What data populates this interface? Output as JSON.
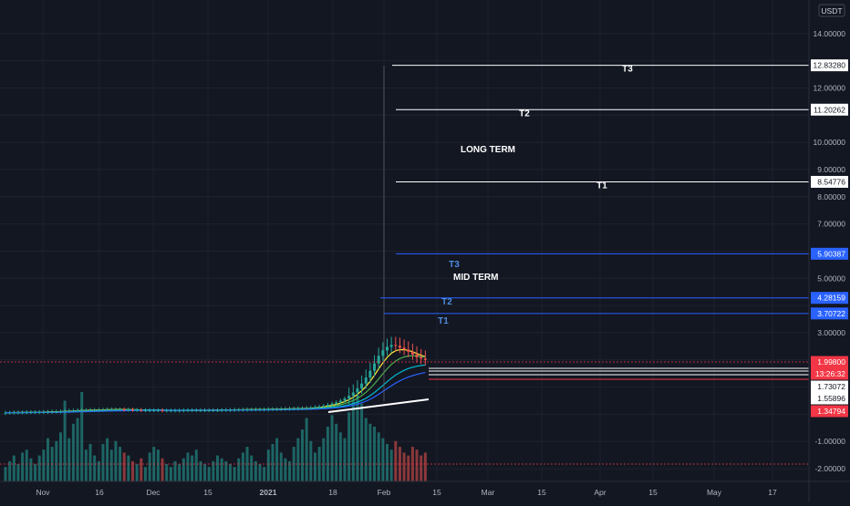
{
  "colors": {
    "background": "#131722",
    "grid": "#1e222d",
    "axis_text": "#b2b5be",
    "up": "#26a69a",
    "down": "#ef5350",
    "long_term_line": "#ffffff",
    "mid_term_line": "#2962ff",
    "mid_term_label": "#4d8ce0",
    "price_badge": "#f23645",
    "blue_badge": "#2962ff",
    "ema_fast": "#ffeb3b",
    "ema_mid": "#4caf50",
    "ema_slow": "#00bcd4",
    "ema_slowest": "#2962ff",
    "trend_line": "#ffffff"
  },
  "chart_data": {
    "type": "candlestick",
    "currency": "USDT",
    "y_axis_ticks": [
      "14.00000",
      "13.00000",
      "12.00000",
      "11.00000",
      "10.00000",
      "9.00000",
      "8.00000",
      "7.00000",
      "6.00000",
      "5.00000",
      "4.00000",
      "3.00000",
      "2.00000",
      "1.00000",
      "0.00000",
      "-1.00000",
      "-2.00000"
    ],
    "y_axis_labels": [
      "14.00000",
      "12.00000",
      "10.00000",
      "9.00000",
      "8.00000",
      "7.00000",
      "5.00000",
      "3.00000",
      "0.00000",
      "-1.00000",
      "-2.00000"
    ],
    "ylim": [
      -2.4,
      15
    ],
    "x_axis_labels": [
      "Nov",
      "16",
      "Dec",
      "15",
      "2021",
      "18",
      "Feb",
      "15",
      "Mar",
      "15",
      "Apr",
      "15",
      "May",
      "17"
    ],
    "date_range": [
      "2020-10-22",
      "2021-02-13"
    ],
    "targets": {
      "long_term": {
        "label": "LONG TERM",
        "levels": [
          {
            "name": "T3",
            "price": "12.83280",
            "value": 12.8328
          },
          {
            "name": "T2",
            "price": "11.20262",
            "value": 11.20262
          },
          {
            "name": "T1",
            "price": "8.54776",
            "value": 8.54776
          }
        ]
      },
      "mid_term": {
        "label": "MID TERM",
        "levels": [
          {
            "name": "T3",
            "price": "5.90387",
            "value": 5.90387
          },
          {
            "name": "T2",
            "price": "4.28159",
            "value": 4.28159
          },
          {
            "name": "T1",
            "price": "3.70722",
            "value": 3.70722
          }
        ]
      }
    },
    "price_badges": {
      "last_price": "1.99800",
      "countdown": "13:26:32",
      "level_a": "1.73072",
      "level_b": "1.55896",
      "level_c": "1.34794"
    },
    "price_levels": {
      "last_price": 1.998,
      "level_a": 1.73072,
      "level_b": 1.55896,
      "level_c": 1.34794
    },
    "candles_description": "flat near 0 from Nov to Jan, rising to ~2 in late Jan / Feb",
    "close_series": [
      0.06,
      0.06,
      0.07,
      0.07,
      0.07,
      0.08,
      0.08,
      0.08,
      0.08,
      0.09,
      0.09,
      0.1,
      0.1,
      0.11,
      0.12,
      0.13,
      0.14,
      0.15,
      0.15,
      0.16,
      0.16,
      0.16,
      0.17,
      0.17,
      0.18,
      0.18,
      0.18,
      0.18,
      0.17,
      0.17,
      0.16,
      0.16,
      0.15,
      0.15,
      0.15,
      0.15,
      0.15,
      0.14,
      0.14,
      0.14,
      0.14,
      0.14,
      0.15,
      0.15,
      0.15,
      0.15,
      0.15,
      0.15,
      0.15,
      0.15,
      0.15,
      0.16,
      0.16,
      0.16,
      0.17,
      0.17,
      0.17,
      0.18,
      0.18,
      0.18,
      0.18,
      0.18,
      0.19,
      0.19,
      0.19,
      0.2,
      0.2,
      0.21,
      0.21,
      0.22,
      0.22,
      0.23,
      0.24,
      0.26,
      0.28,
      0.31,
      0.35,
      0.39,
      0.44,
      0.5,
      0.58,
      0.68,
      0.8,
      0.95,
      1.13,
      1.35,
      1.6,
      1.87,
      2.15,
      2.35,
      2.48,
      2.55,
      2.52,
      2.45,
      2.38,
      2.3,
      2.2,
      2.1,
      2.05,
      2.0
    ],
    "volume_series": [
      10,
      14,
      18,
      12,
      20,
      22,
      16,
      12,
      18,
      22,
      30,
      24,
      28,
      34,
      56,
      30,
      40,
      44,
      62,
      22,
      26,
      18,
      14,
      26,
      30,
      22,
      28,
      24,
      20,
      18,
      14,
      12,
      16,
      10,
      20,
      24,
      22,
      16,
      12,
      10,
      14,
      12,
      16,
      20,
      18,
      22,
      14,
      12,
      10,
      14,
      18,
      16,
      14,
      12,
      10,
      16,
      20,
      24,
      18,
      14,
      12,
      10,
      22,
      26,
      30,
      20,
      16,
      14,
      24,
      30,
      36,
      44,
      28,
      20,
      24,
      30,
      38,
      46,
      40,
      34,
      30,
      48,
      56,
      60,
      54,
      44,
      40,
      38,
      34,
      30,
      26,
      22,
      28,
      24,
      20,
      18,
      24,
      22,
      18,
      20
    ]
  }
}
